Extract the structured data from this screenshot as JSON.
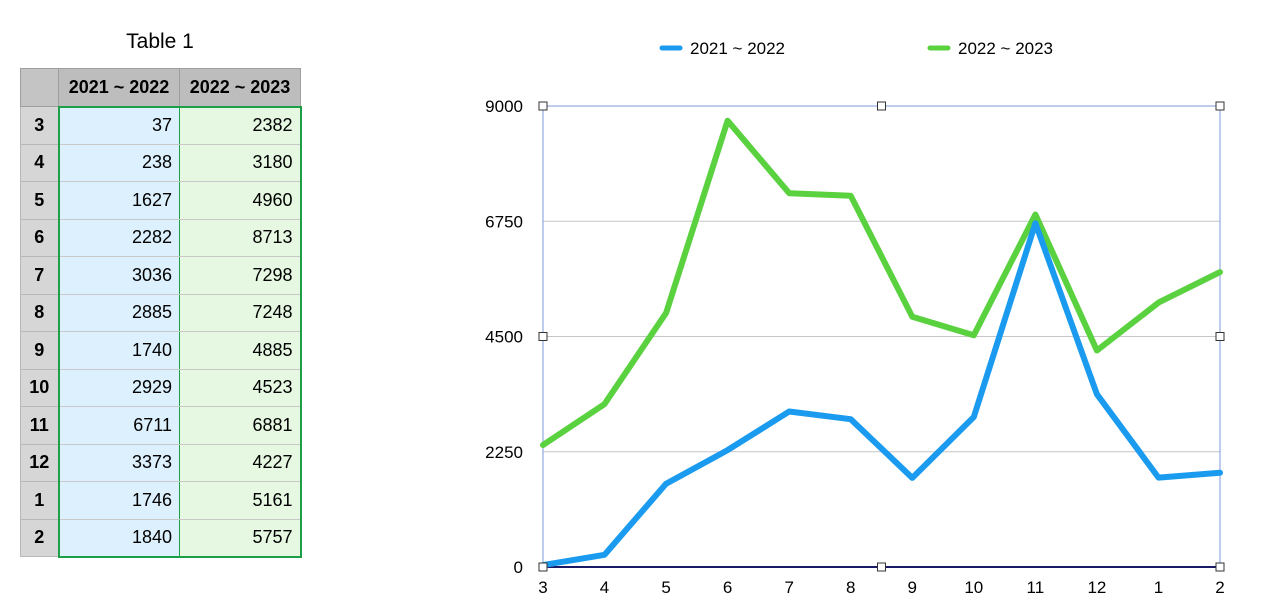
{
  "table": {
    "title": "Table 1",
    "headers": [
      "",
      "2021 ~ 2022",
      "2022 ~ 2023"
    ],
    "rows": [
      {
        "label": "3",
        "v1": "37",
        "v2": "2382"
      },
      {
        "label": "4",
        "v1": "238",
        "v2": "3180"
      },
      {
        "label": "5",
        "v1": "1627",
        "v2": "4960"
      },
      {
        "label": "6",
        "v1": "2282",
        "v2": "8713"
      },
      {
        "label": "7",
        "v1": "3036",
        "v2": "7298"
      },
      {
        "label": "8",
        "v1": "2885",
        "v2": "7248"
      },
      {
        "label": "9",
        "v1": "1740",
        "v2": "4885"
      },
      {
        "label": "10",
        "v1": "2929",
        "v2": "4523"
      },
      {
        "label": "11",
        "v1": "6711",
        "v2": "6881"
      },
      {
        "label": "12",
        "v1": "3373",
        "v2": "4227"
      },
      {
        "label": "1",
        "v1": "1746",
        "v2": "5161"
      },
      {
        "label": "2",
        "v1": "1840",
        "v2": "5757"
      }
    ]
  },
  "chart_data": {
    "type": "line",
    "title": "",
    "xlabel": "",
    "ylabel": "",
    "categories": [
      "3",
      "4",
      "5",
      "6",
      "7",
      "8",
      "9",
      "10",
      "11",
      "12",
      "1",
      "2"
    ],
    "series": [
      {
        "name": "2021 ~ 2022",
        "color": "#1a9bef",
        "values": [
          37,
          238,
          1627,
          2282,
          3036,
          2885,
          1740,
          2929,
          6711,
          3373,
          1746,
          1840
        ]
      },
      {
        "name": "2022 ~ 2023",
        "color": "#5ad13f",
        "values": [
          2382,
          3180,
          4960,
          8713,
          7298,
          7248,
          4885,
          4523,
          6881,
          4227,
          5161,
          5757
        ]
      }
    ],
    "yticks": [
      0,
      2250,
      4500,
      6750,
      9000
    ],
    "ylim": [
      0,
      9000
    ],
    "grid": true,
    "legend": "top"
  }
}
